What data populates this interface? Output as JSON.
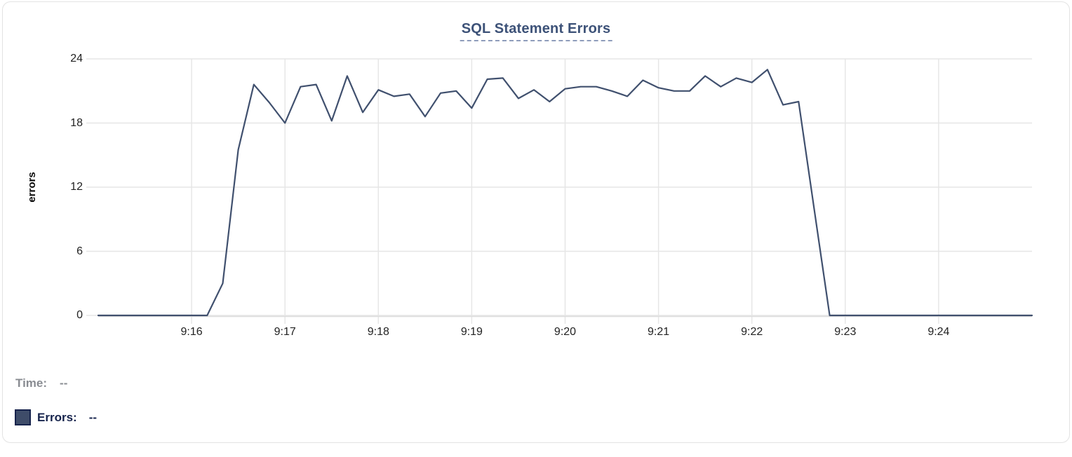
{
  "colors": {
    "line": "#40506e",
    "grid": "#e6e6e6",
    "axis_line": "#dcdcdc",
    "title": "#3d5278",
    "title_underline": "#8f9dbb",
    "tick_text": "#222222",
    "time_text": "#898c92",
    "errors_text": "#16234c",
    "swatch_fill": "#3e4c69",
    "card_border": "#e3e3e3"
  },
  "legend": {
    "time_label": "Time:",
    "time_value": "--",
    "errors_label": "Errors:",
    "errors_value": "--"
  },
  "chart_data": {
    "type": "line",
    "title": "SQL Statement Errors",
    "ylabel": "errors",
    "xlabel": "",
    "grid": true,
    "legend_position": "bottom-left",
    "ylim": [
      0,
      24
    ],
    "y_ticks": [
      0,
      6,
      12,
      18,
      24
    ],
    "x_start": "9:15:00",
    "x_end": "9:25:00",
    "x_tick_labels": [
      "9:16",
      "9:17",
      "9:18",
      "9:19",
      "9:20",
      "9:21",
      "9:22",
      "9:23",
      "9:24"
    ],
    "sample_interval_seconds": 10,
    "series": [
      {
        "name": "Errors",
        "color": "#40506e",
        "values": [
          0,
          0,
          0,
          0,
          0,
          0,
          0,
          0,
          3,
          15.5,
          21.6,
          19.9,
          18,
          21.4,
          21.6,
          18.2,
          22.4,
          19,
          21.1,
          20.5,
          20.7,
          18.6,
          20.8,
          21,
          19.4,
          22.1,
          22.2,
          20.3,
          21.1,
          20,
          21.2,
          21.4,
          21.4,
          21,
          20.5,
          22,
          21.3,
          21,
          21,
          22.4,
          21.4,
          22.2,
          21.8,
          23,
          19.7,
          20,
          10,
          0,
          0,
          0,
          0,
          0,
          0,
          0,
          0,
          0,
          0,
          0,
          0,
          0,
          0
        ]
      }
    ]
  }
}
